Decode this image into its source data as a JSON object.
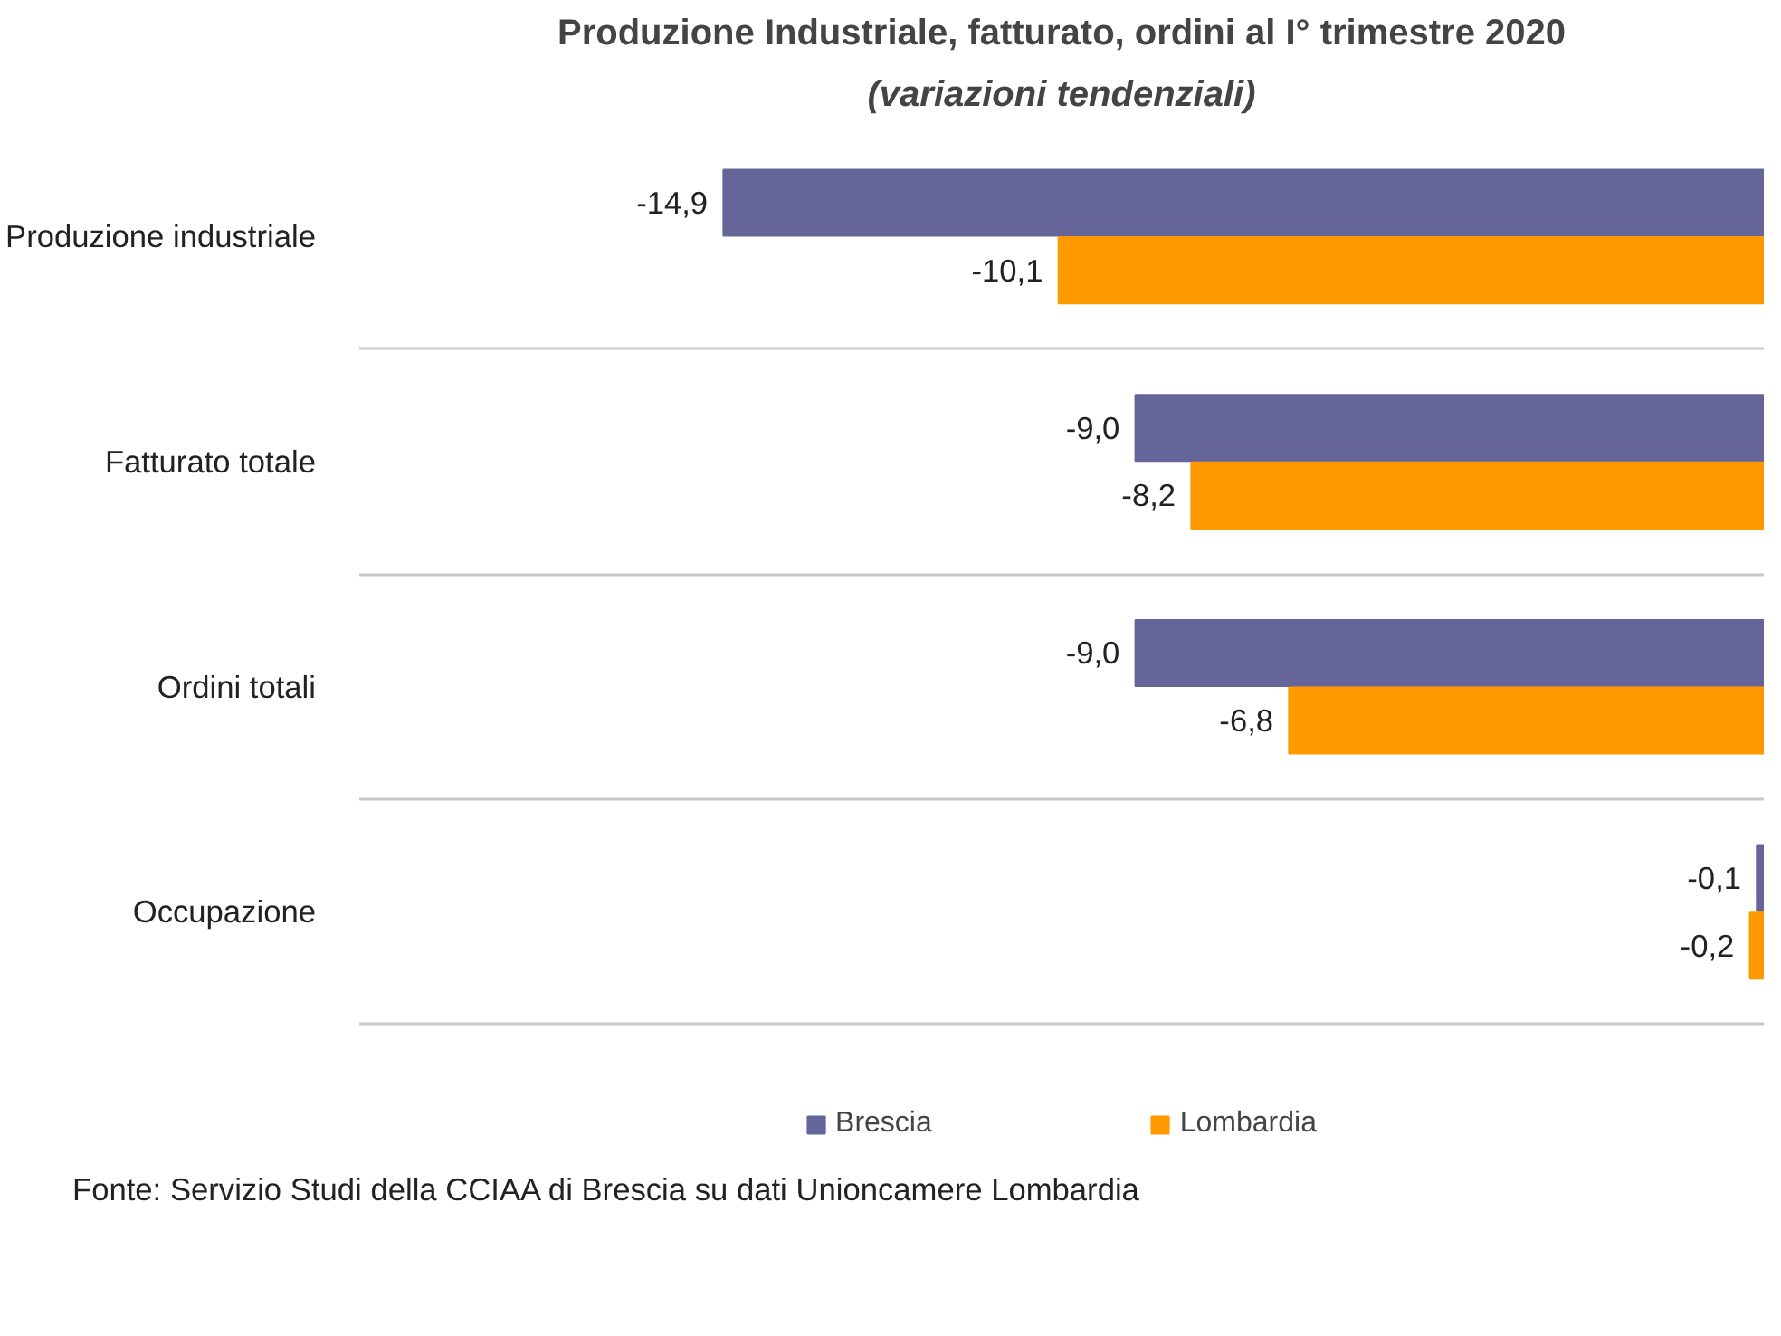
{
  "chart_data": {
    "type": "bar",
    "orientation": "horizontal",
    "title": "Produzione Industriale, fatturato, ordini al I° trimestre 2020",
    "subtitle": "(variazioni tendenziali)",
    "categories": [
      "Produzione industriale",
      "Fatturato totale",
      "Ordini totali",
      "Occupazione"
    ],
    "series": [
      {
        "name": "Brescia",
        "color": "#65659a",
        "values": [
          -14.9,
          -9.0,
          -9.0,
          -0.1
        ],
        "value_labels": [
          "-14,9",
          "-9,0",
          "-9,0",
          "-0,1"
        ]
      },
      {
        "name": "Lombardia",
        "color": "#ff9900",
        "values": [
          -10.1,
          -8.2,
          -6.8,
          -0.2
        ],
        "value_labels": [
          "-10,1",
          "-8,2",
          "-6,8",
          "-0,2"
        ]
      }
    ],
    "data_labels": true,
    "grid": "y",
    "legend": "bottom",
    "annotations": [
      "Fonte: Servizio Studi della CCIAA di Brescia  su dati Unioncamere Lombardia"
    ]
  }
}
